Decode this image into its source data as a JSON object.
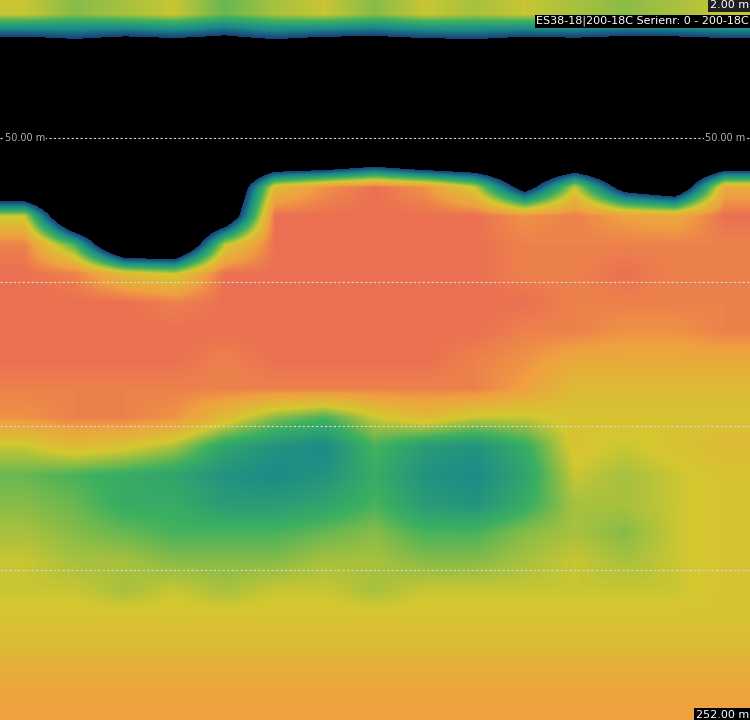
{
  "chart_data": {
    "type": "echogram",
    "title": "ES38-18|200-18C Serienr: 0 - 200-18C",
    "ylim": [
      252,
      2
    ],
    "yticks": [
      {
        "value": 2,
        "label": "2.00 m"
      },
      {
        "value": 50,
        "label": "50.00 m"
      },
      {
        "value": 252,
        "label": "252.00 m"
      }
    ],
    "depth_lines": [
      50,
      100,
      150,
      200
    ],
    "grid": true,
    "tick_labels": false,
    "color_range": [
      -76,
      -52
    ],
    "depth_bins": [
      2,
      12,
      22,
      32,
      42,
      52,
      62,
      72,
      82,
      92,
      102,
      112,
      122,
      132,
      142,
      152,
      162,
      172,
      182,
      192,
      202,
      212,
      222,
      232,
      242,
      252
    ],
    "sv_cells": [
      [
        -62,
        -64,
        -63,
        -62,
        -65,
        -63,
        -62,
        -64,
        -62,
        -63,
        -62,
        -63,
        -64,
        -63,
        -62
      ],
      [
        -80,
        -78,
        -80,
        -79,
        -80,
        -78,
        -80,
        -80,
        -79,
        -78,
        -80,
        -79,
        -80,
        -80,
        -79
      ],
      [
        -90,
        -90,
        -90,
        -90,
        -90,
        -90,
        -90,
        -90,
        -90,
        -90,
        -90,
        -90,
        -90,
        -90,
        -90
      ],
      [
        -90,
        -90,
        -90,
        -90,
        -90,
        -90,
        -90,
        -90,
        -90,
        -90,
        -90,
        -90,
        -90,
        -90,
        -90
      ],
      [
        -90,
        -90,
        -90,
        -90,
        -90,
        -90,
        -90,
        -90,
        -90,
        -90,
        -90,
        -90,
        -90,
        -90,
        -90
      ],
      [
        -90,
        -90,
        -90,
        -90,
        -90,
        -90,
        -90,
        -85,
        -90,
        -90,
        -90,
        -90,
        -90,
        -90,
        -90
      ],
      [
        -90,
        -90,
        -90,
        -90,
        -90,
        -60,
        -56,
        -54,
        -56,
        -62,
        -80,
        -62,
        -80,
        -85,
        -58
      ],
      [
        -62,
        -90,
        -90,
        -90,
        -85,
        -54,
        -54,
        -54,
        -54,
        -54,
        -56,
        -55,
        -57,
        -58,
        -54
      ],
      [
        -55,
        -66,
        -90,
        -90,
        -62,
        -54,
        -54,
        -54,
        -54,
        -54,
        -55,
        -55,
        -55,
        -55,
        -55
      ],
      [
        -54,
        -55,
        -60,
        -62,
        -54,
        -54,
        -54,
        -54,
        -54,
        -54,
        -55,
        -55,
        -54,
        -55,
        -55
      ],
      [
        -54,
        -54,
        -54,
        -55,
        -54,
        -54,
        -54,
        -54,
        -54,
        -54,
        -54,
        -55,
        -55,
        -55,
        -55
      ],
      [
        -54,
        -54,
        -54,
        -54,
        -54,
        -54,
        -54,
        -54,
        -54,
        -54,
        -55,
        -55,
        -56,
        -56,
        -55
      ],
      [
        -54,
        -54,
        -54,
        -54,
        -55,
        -54,
        -54,
        -54,
        -54,
        -55,
        -56,
        -58,
        -58,
        -58,
        -58
      ],
      [
        -55,
        -55,
        -55,
        -55,
        -55,
        -55,
        -55,
        -55,
        -55,
        -55,
        -57,
        -60,
        -60,
        -60,
        -60
      ],
      [
        -56,
        -55,
        -55,
        -56,
        -60,
        -64,
        -66,
        -62,
        -60,
        -62,
        -62,
        -61,
        -61,
        -61,
        -61
      ],
      [
        -62,
        -60,
        -61,
        -63,
        -68,
        -70,
        -71,
        -66,
        -69,
        -70,
        -67,
        -61,
        -62,
        -61,
        -60
      ],
      [
        -65,
        -66,
        -67,
        -68,
        -70,
        -71,
        -70,
        -67,
        -70,
        -71,
        -68,
        -62,
        -63,
        -62,
        -61
      ],
      [
        -64,
        -65,
        -67,
        -67,
        -69,
        -69,
        -68,
        -66,
        -69,
        -70,
        -67,
        -63,
        -63,
        -62,
        -61
      ],
      [
        -63,
        -64,
        -65,
        -66,
        -66,
        -66,
        -65,
        -64,
        -66,
        -66,
        -64,
        -63,
        -64,
        -62,
        -61
      ],
      [
        -62,
        -63,
        -63,
        -64,
        -64,
        -64,
        -63,
        -63,
        -64,
        -64,
        -63,
        -62,
        -63,
        -62,
        -61
      ],
      [
        -62,
        -62,
        -63,
        -62,
        -63,
        -62,
        -62,
        -63,
        -62,
        -62,
        -62,
        -62,
        -62,
        -62,
        -61
      ],
      [
        -61,
        -61,
        -61,
        -61,
        -61,
        -61,
        -61,
        -61,
        -61,
        -61,
        -61,
        -61,
        -61,
        -61,
        -61
      ],
      [
        -60,
        -60,
        -60,
        -60,
        -60,
        -60,
        -60,
        -60,
        -60,
        -60,
        -60,
        -60,
        -60,
        -60,
        -60
      ],
      [
        -58,
        -58,
        -58,
        -58,
        -58,
        -58,
        -58,
        -58,
        -58,
        -58,
        -58,
        -58,
        -58,
        -58,
        -58
      ],
      [
        -57,
        -57,
        -57,
        -57,
        -57,
        -57,
        -57,
        -57,
        -57,
        -57,
        -57,
        -57,
        -57,
        -57,
        -57
      ]
    ]
  }
}
